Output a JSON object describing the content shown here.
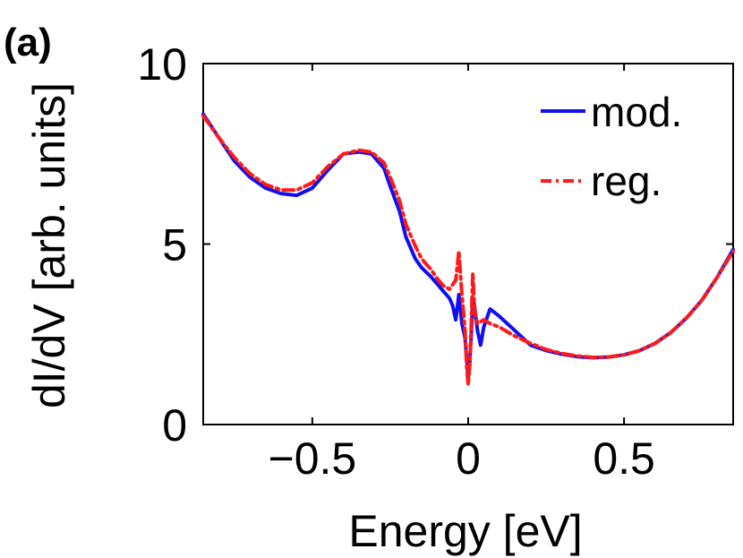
{
  "panel_label": "(a)",
  "chart_data": {
    "type": "line",
    "title": "",
    "xlabel": "Energy [eV]",
    "ylabel": "dI/dV [arb. units]",
    "xlim": [
      -0.85,
      0.85
    ],
    "ylim": [
      0,
      10
    ],
    "xticks": [
      -0.5,
      0,
      0.5
    ],
    "xtick_labels": [
      "−0.5",
      "0",
      "0.5"
    ],
    "yticks": [
      0,
      5,
      10
    ],
    "ytick_labels": [
      "0",
      "5",
      "10"
    ],
    "grid": false,
    "legend_position": "top-right",
    "series": [
      {
        "name": "mod.",
        "color": "#1010ee",
        "style": "solid",
        "x": [
          -0.85,
          -0.8,
          -0.75,
          -0.7,
          -0.65,
          -0.6,
          -0.55,
          -0.5,
          -0.45,
          -0.4,
          -0.35,
          -0.31,
          -0.27,
          -0.25,
          -0.22,
          -0.2,
          -0.17,
          -0.15,
          -0.12,
          -0.1,
          -0.08,
          -0.06,
          -0.05,
          -0.04,
          -0.03,
          -0.02,
          -0.01,
          0.0,
          0.005,
          0.01,
          0.015,
          0.02,
          0.03,
          0.04,
          0.05,
          0.07,
          0.1,
          0.15,
          0.2,
          0.25,
          0.3,
          0.35,
          0.4,
          0.45,
          0.5,
          0.55,
          0.6,
          0.65,
          0.7,
          0.75,
          0.8,
          0.85
        ],
        "y": [
          8.6,
          7.95,
          7.3,
          6.85,
          6.55,
          6.4,
          6.35,
          6.55,
          7.05,
          7.5,
          7.55,
          7.5,
          7.1,
          6.6,
          5.9,
          5.2,
          4.6,
          4.35,
          4.1,
          3.9,
          3.7,
          3.5,
          3.3,
          2.9,
          3.6,
          2.8,
          2.4,
          1.3,
          1.7,
          2.5,
          3.5,
          3.3,
          2.6,
          2.2,
          2.7,
          3.2,
          3.0,
          2.6,
          2.2,
          2.05,
          1.95,
          1.88,
          1.85,
          1.87,
          1.93,
          2.05,
          2.25,
          2.55,
          2.95,
          3.45,
          4.1,
          4.85
        ]
      },
      {
        "name": "reg.",
        "color": "#ff1a1a",
        "style": "dash-dot",
        "x": [
          -0.85,
          -0.8,
          -0.75,
          -0.7,
          -0.65,
          -0.6,
          -0.55,
          -0.5,
          -0.45,
          -0.4,
          -0.35,
          -0.31,
          -0.27,
          -0.25,
          -0.22,
          -0.2,
          -0.17,
          -0.15,
          -0.12,
          -0.1,
          -0.08,
          -0.06,
          -0.04,
          -0.03,
          -0.02,
          -0.01,
          -0.005,
          0.0,
          0.005,
          0.01,
          0.015,
          0.02,
          0.03,
          0.05,
          0.07,
          0.1,
          0.15,
          0.2,
          0.25,
          0.3,
          0.35,
          0.4,
          0.45,
          0.5,
          0.55,
          0.6,
          0.65,
          0.7,
          0.75,
          0.8,
          0.85
        ],
        "y": [
          8.55,
          7.95,
          7.4,
          6.95,
          6.65,
          6.5,
          6.5,
          6.7,
          7.15,
          7.5,
          7.6,
          7.55,
          7.25,
          6.85,
          6.2,
          5.55,
          4.95,
          4.6,
          4.3,
          4.05,
          3.85,
          3.75,
          4.0,
          4.8,
          3.6,
          2.6,
          1.6,
          1.1,
          1.6,
          2.8,
          4.2,
          3.2,
          2.8,
          2.9,
          2.8,
          2.7,
          2.45,
          2.25,
          2.08,
          1.97,
          1.9,
          1.86,
          1.87,
          1.93,
          2.05,
          2.25,
          2.55,
          2.95,
          3.45,
          4.1,
          4.8
        ]
      }
    ]
  }
}
